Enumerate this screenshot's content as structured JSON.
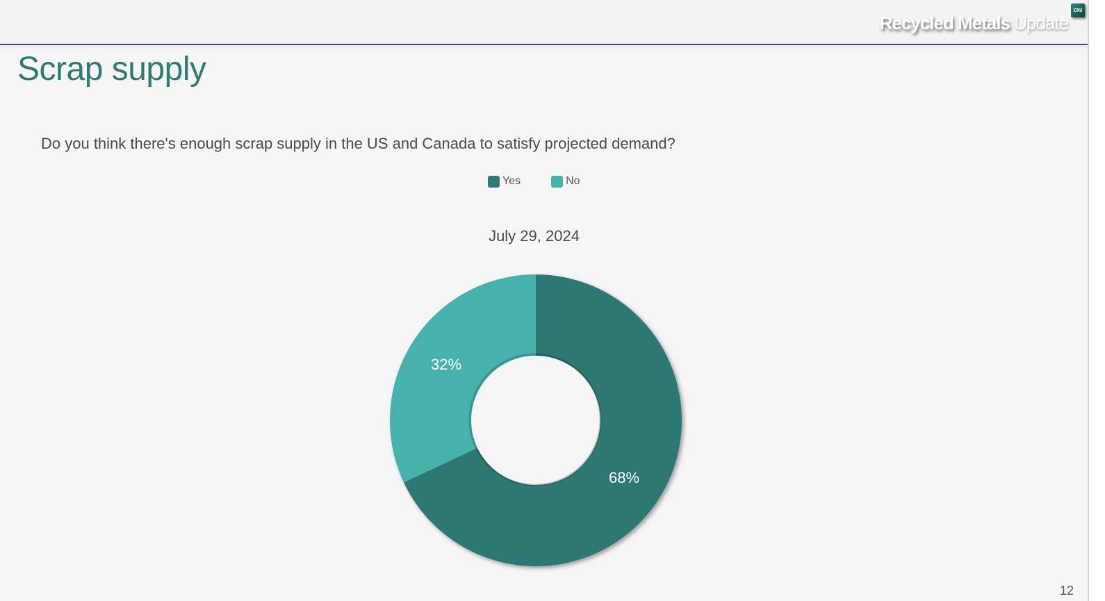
{
  "header": {
    "brand_bold": "Recycled Metals",
    "brand_light": " Update",
    "logo_text": "CRU",
    "rule_color": "#5b3f7a"
  },
  "slide": {
    "title": "Scrap supply",
    "question": "Do you think there's enough scrap supply in the US and Canada to satisfy projected demand?",
    "page_number": "12"
  },
  "legend": [
    {
      "label": "Yes",
      "color": "#2f7873"
    },
    {
      "label": "No",
      "color": "#47b2ab"
    }
  ],
  "chart_data": {
    "type": "pie",
    "subtype": "donut",
    "title": "July 29, 2024",
    "categories": [
      "Yes",
      "No"
    ],
    "values": [
      68,
      32
    ],
    "labels": [
      "68%",
      "32%"
    ],
    "colors": [
      "#2f7873",
      "#47b2ab"
    ],
    "legend_position": "top",
    "start_angle": "12 o'clock, clockwise"
  }
}
